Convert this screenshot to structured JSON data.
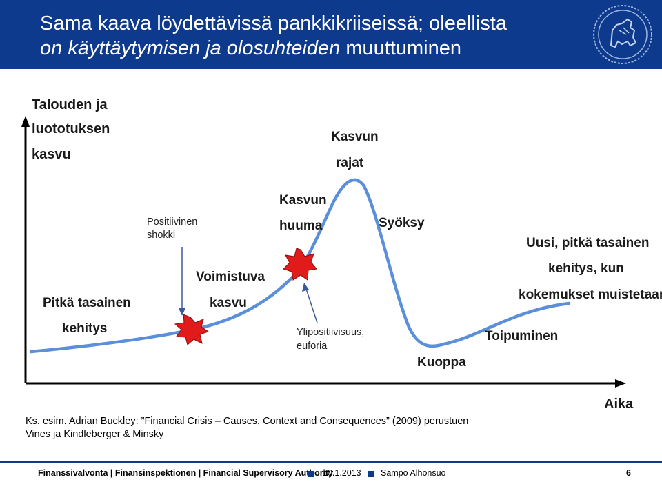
{
  "header": {
    "title_line1": "Sama kaava löydettävissä pankkikriiseissä; oleellista",
    "title_line2_italic": "on käyttäytymisen ja olosuhteiden",
    "title_line2_rest": " muuttuminen",
    "background_color": "#0d3a8c",
    "emblem_icon": "finnish-lion-emblem-icon"
  },
  "diagram": {
    "y_axis_label": [
      "Talouden ja",
      "luototuksen",
      "kasvu"
    ],
    "x_axis_label": "Aika",
    "curve_color": "#5b8fd9",
    "burst_color": "#e11b1b",
    "phases": {
      "long_steady": [
        "Pitkä tasainen",
        "kehitys"
      ],
      "strong_growth": [
        "Voimistuva",
        "kasvu"
      ],
      "growth_frenzy": [
        "Kasvun",
        "huuma"
      ],
      "growth_limits": [
        "Kasvun",
        "rajat"
      ],
      "plunge": "Syöksy",
      "pit": "Kuoppa",
      "recovery": "Toipuminen",
      "new_steady": [
        "Uusi, pitkä tasainen",
        "kehitys, kun",
        "kokemukset muistetaan"
      ]
    },
    "annotations": {
      "positive_shock": [
        "Positiivinen",
        "shokki"
      ],
      "over_optimism": [
        "Ylipositiivisuus,",
        "euforia"
      ]
    }
  },
  "reference": {
    "line1": "Ks. esim. Adrian Buckley: ”Financial Crisis – Causes, Context and Consequences” (2009) perustuen",
    "line2": "Vines ja Kindleberger & Minsky"
  },
  "footer": {
    "organization": "Finanssivalvonta | Finansinspektionen | Financial Supervisory Authority",
    "date": "10.1.2013",
    "author": "Sampo Alhonsuo",
    "page": "6"
  }
}
